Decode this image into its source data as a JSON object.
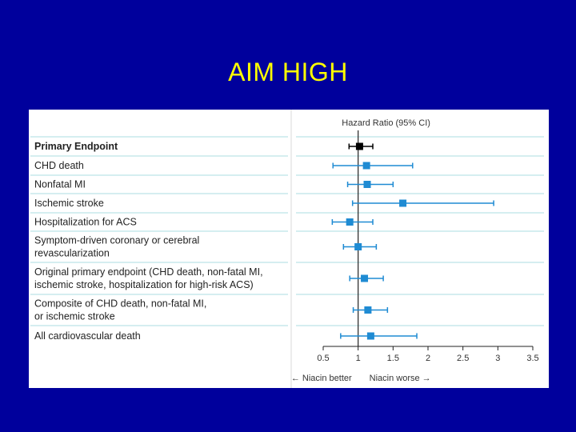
{
  "slide": {
    "title": "AIM HIGH"
  },
  "chart_data": {
    "type": "forest",
    "header": "Hazard Ratio (95% CI)",
    "x_ticks": [
      "0.5",
      "1",
      "1.5",
      "2",
      "2.5",
      "3",
      "3.5"
    ],
    "xlim": [
      0.5,
      3.5
    ],
    "reference_line": 1,
    "direction_labels": {
      "left": "← Niacin better",
      "right": "Niacin worse →"
    },
    "rows": [
      {
        "label": [
          "Primary Endpoint"
        ],
        "bold": true,
        "hr": 1.02,
        "lo": 0.87,
        "hi": 1.21,
        "color": "#000000"
      },
      {
        "label": [
          "CHD death"
        ],
        "bold": false,
        "hr": 1.12,
        "lo": 0.64,
        "hi": 1.78,
        "color": "#1f8bd3"
      },
      {
        "label": [
          "Nonfatal MI"
        ],
        "bold": false,
        "hr": 1.13,
        "lo": 0.85,
        "hi": 1.5,
        "color": "#1f8bd3"
      },
      {
        "label": [
          "Ischemic stroke"
        ],
        "bold": false,
        "hr": 1.64,
        "lo": 0.92,
        "hi": 2.94,
        "color": "#1f8bd3"
      },
      {
        "label": [
          "Hospitalization for ACS"
        ],
        "bold": false,
        "hr": 0.88,
        "lo": 0.63,
        "hi": 1.21,
        "color": "#1f8bd3"
      },
      {
        "label": [
          "Symptom-driven coronary or cerebral",
          "revascularization"
        ],
        "bold": false,
        "hr": 1.0,
        "lo": 0.79,
        "hi": 1.26,
        "color": "#1f8bd3"
      },
      {
        "label": [
          "Original primary endpoint (CHD death, non-fatal MI,",
          "ischemic stroke, hospitalization for high-risk ACS)"
        ],
        "bold": false,
        "hr": 1.09,
        "lo": 0.88,
        "hi": 1.36,
        "color": "#1f8bd3"
      },
      {
        "label": [
          "Composite of CHD death, non-fatal MI,",
          "or ischemic stroke"
        ],
        "bold": false,
        "hr": 1.14,
        "lo": 0.93,
        "hi": 1.42,
        "color": "#1f8bd3"
      },
      {
        "label": [
          "All cardiovascular death"
        ],
        "bold": false,
        "hr": 1.18,
        "lo": 0.75,
        "hi": 1.84,
        "color": "#1f8bd3"
      }
    ]
  }
}
